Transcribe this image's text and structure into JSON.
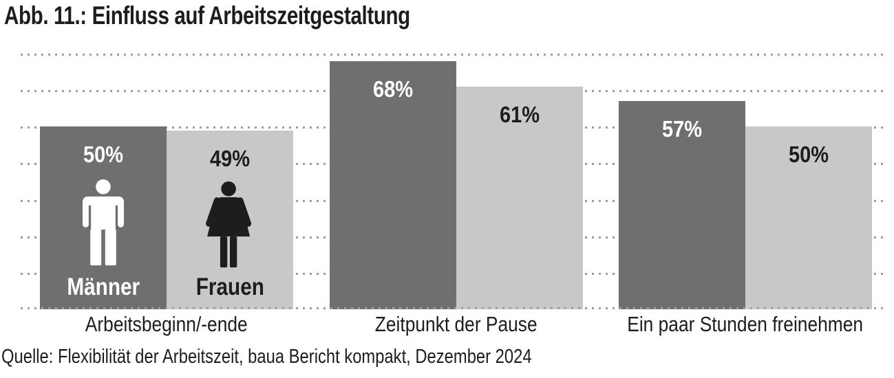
{
  "title": "Abb. 11.: Einfluss auf Arbeitszeitgestaltung",
  "source": "Quelle: Flexibilität der Arbeitszeit, baua Bericht kompakt, Dezember 2024",
  "colors": {
    "men_bar": "#6f6f6e",
    "women_bar": "#c8c8c8",
    "grid_dot": "#9d9d9c",
    "men_text": "#ffffff",
    "women_text": "#1d1d1b"
  },
  "icons": {
    "men": "man-icon",
    "women": "woman-icon"
  },
  "chart_data": {
    "type": "bar",
    "title": "Abb. 11.: Einfluss auf Arbeitszeitgestaltung",
    "categories": [
      "Arbeitsbeginn/-ende",
      "Zeitpunkt der Pause",
      "Ein paar Stunden freinehmen"
    ],
    "series": [
      {
        "name": "Männer",
        "values": [
          50,
          68,
          57
        ],
        "color": "#6f6f6e"
      },
      {
        "name": "Frauen",
        "values": [
          49,
          61,
          50
        ],
        "color": "#c8c8c8"
      }
    ],
    "value_labels": [
      [
        "50%",
        "49%"
      ],
      [
        "68%",
        "61%"
      ],
      [
        "57%",
        "50%"
      ]
    ],
    "unit": "%",
    "ylim": [
      0,
      70
    ],
    "gridlines": [
      0,
      10,
      20,
      30,
      40,
      50,
      60,
      70
    ],
    "grid_style": "dotted-horizontal",
    "legend_position": "inside-first-group",
    "source": "Quelle: Flexibilität der Arbeitszeit, baua Bericht kompakt, Dezember 2024"
  }
}
